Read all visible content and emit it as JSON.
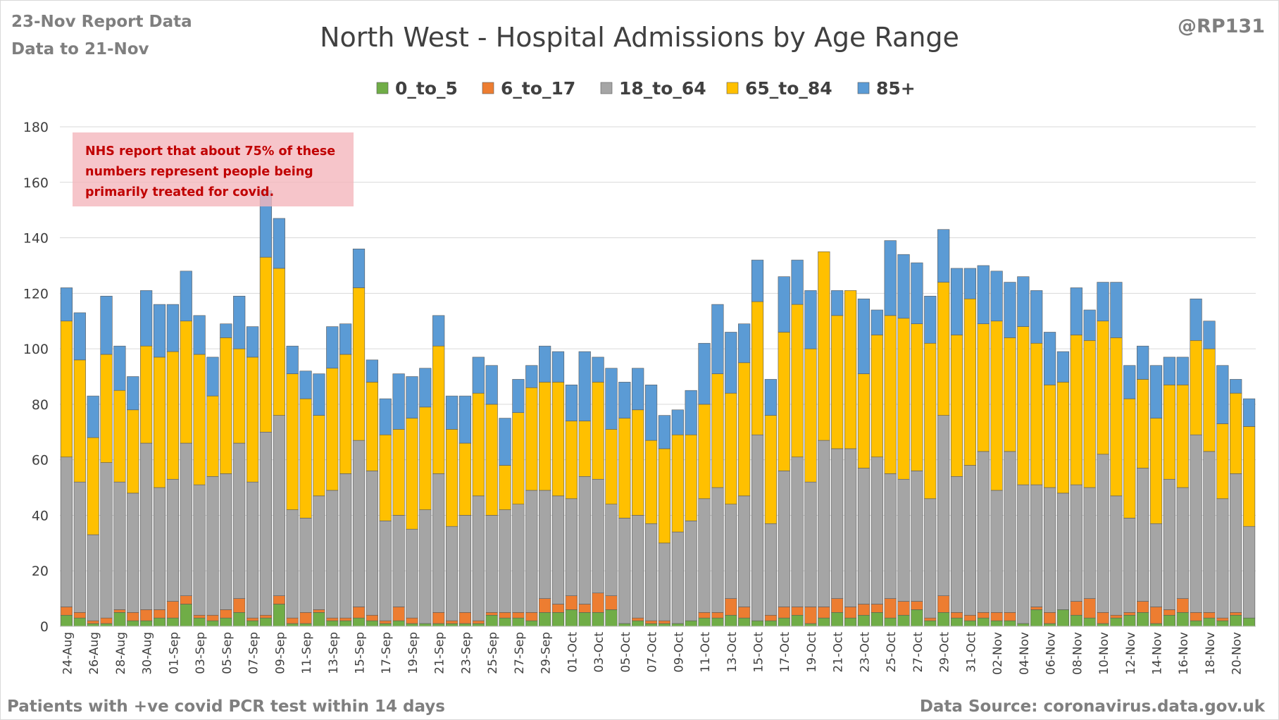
{
  "header": {
    "report_date": "23-Nov Report Data",
    "data_to": "Data to 21-Nov",
    "handle": "@RP131"
  },
  "footer": {
    "left_note": "Patients with  +ve covid PCR test within 14 days",
    "source": "Data Source: coronavirus.data.gov.uk"
  },
  "annotation": {
    "lines": [
      "NHS report that about 75% of these",
      "numbers represent people being",
      "primarily treated for covid."
    ]
  },
  "chart_data": {
    "type": "bar",
    "stacked": true,
    "title": "North West - Hospital Admissions by Age Range",
    "xlabel": "",
    "ylabel": "",
    "ylim": [
      0,
      180
    ],
    "yticks": [
      0,
      20,
      40,
      60,
      80,
      100,
      120,
      140,
      160,
      180
    ],
    "grid": true,
    "legend_position": "top",
    "categories": [
      "24-Aug",
      "25-Aug",
      "26-Aug",
      "27-Aug",
      "28-Aug",
      "29-Aug",
      "30-Aug",
      "31-Aug",
      "01-Sep",
      "02-Sep",
      "03-Sep",
      "04-Sep",
      "05-Sep",
      "06-Sep",
      "07-Sep",
      "08-Sep",
      "09-Sep",
      "10-Sep",
      "11-Sep",
      "12-Sep",
      "13-Sep",
      "14-Sep",
      "15-Sep",
      "16-Sep",
      "17-Sep",
      "18-Sep",
      "19-Sep",
      "20-Sep",
      "21-Sep",
      "22-Sep",
      "23-Sep",
      "24-Sep",
      "25-Sep",
      "26-Sep",
      "27-Sep",
      "28-Sep",
      "29-Sep",
      "30-Sep",
      "01-Oct",
      "02-Oct",
      "03-Oct",
      "04-Oct",
      "05-Oct",
      "06-Oct",
      "07-Oct",
      "08-Oct",
      "09-Oct",
      "10-Oct",
      "11-Oct",
      "12-Oct",
      "13-Oct",
      "14-Oct",
      "15-Oct",
      "16-Oct",
      "17-Oct",
      "18-Oct",
      "19-Oct",
      "20-Oct",
      "21-Oct",
      "22-Oct",
      "23-Oct",
      "24-Oct",
      "25-Oct",
      "26-Oct",
      "27-Oct",
      "28-Oct",
      "29-Oct",
      "30-Oct",
      "31-Oct",
      "01-Nov",
      "02-Nov",
      "03-Nov",
      "04-Nov",
      "05-Nov",
      "06-Nov",
      "07-Nov",
      "08-Nov",
      "09-Nov",
      "10-Nov",
      "11-Nov",
      "12-Nov",
      "13-Nov",
      "14-Nov",
      "15-Nov",
      "16-Nov",
      "17-Nov",
      "18-Nov",
      "19-Nov",
      "20-Nov",
      "21-Nov"
    ],
    "series": [
      {
        "name": "0_to_5",
        "color": "#70ad47",
        "values": [
          4,
          3,
          1,
          1,
          5,
          2,
          2,
          3,
          3,
          8,
          3,
          2,
          3,
          5,
          2,
          3,
          8,
          1,
          1,
          5,
          2,
          2,
          3,
          2,
          1,
          2,
          1,
          1,
          1,
          1,
          1,
          1,
          4,
          3,
          3,
          2,
          5,
          5,
          6,
          5,
          5,
          6,
          1,
          2,
          1,
          1,
          1,
          2,
          3,
          3,
          4,
          3,
          2,
          2,
          3,
          4,
          1,
          3,
          5,
          3,
          4,
          5,
          3,
          4,
          6,
          2,
          5,
          3,
          2,
          3,
          2,
          2,
          1,
          6,
          1,
          6,
          4,
          3,
          1,
          3,
          4,
          5,
          1,
          4,
          5,
          2,
          3,
          2,
          4,
          3
        ]
      },
      {
        "name": "6_to_17",
        "color": "#ed7d31",
        "values": [
          3,
          2,
          1,
          2,
          1,
          3,
          4,
          3,
          6,
          3,
          1,
          2,
          3,
          5,
          1,
          1,
          3,
          2,
          4,
          1,
          1,
          1,
          4,
          2,
          1,
          5,
          2,
          0,
          4,
          1,
          4,
          1,
          1,
          2,
          2,
          3,
          5,
          3,
          5,
          3,
          7,
          5,
          0,
          1,
          1,
          1,
          0,
          0,
          2,
          2,
          6,
          4,
          0,
          2,
          4,
          3,
          6,
          4,
          5,
          4,
          4,
          3,
          7,
          5,
          3,
          1,
          6,
          2,
          2,
          2,
          3,
          3,
          0,
          1,
          4,
          0,
          5,
          7,
          4,
          1,
          1,
          4,
          6,
          2,
          5,
          3,
          2,
          1,
          1,
          0
        ]
      },
      {
        "name": "18_to_64",
        "color": "#a5a5a5",
        "values": [
          54,
          47,
          31,
          56,
          46,
          43,
          60,
          44,
          44,
          55,
          47,
          50,
          49,
          56,
          49,
          66,
          65,
          39,
          34,
          41,
          46,
          52,
          60,
          52,
          36,
          33,
          32,
          41,
          50,
          34,
          35,
          45,
          35,
          37,
          39,
          44,
          39,
          39,
          35,
          46,
          41,
          33,
          38,
          37,
          35,
          28,
          33,
          36,
          41,
          45,
          34,
          40,
          67,
          33,
          49,
          54,
          45,
          60,
          54,
          57,
          49,
          53,
          45,
          44,
          47,
          43,
          65,
          49,
          54,
          58,
          44,
          58,
          50,
          44,
          45,
          42,
          42,
          40,
          57,
          43,
          34,
          48,
          30,
          47,
          40,
          64,
          58,
          43,
          50,
          33
        ]
      },
      {
        "name": "65_to_84",
        "color": "#ffc000",
        "values": [
          49,
          44,
          35,
          39,
          33,
          30,
          35,
          47,
          46,
          44,
          47,
          29,
          49,
          34,
          45,
          63,
          53,
          49,
          43,
          29,
          44,
          43,
          55,
          32,
          31,
          31,
          40,
          37,
          46,
          35,
          26,
          37,
          40,
          16,
          33,
          37,
          39,
          41,
          28,
          20,
          35,
          27,
          36,
          38,
          30,
          34,
          35,
          31,
          34,
          41,
          40,
          48,
          48,
          39,
          50,
          55,
          48,
          68,
          48,
          57,
          34,
          44,
          57,
          58,
          53,
          56,
          48,
          51,
          60,
          46,
          61,
          41,
          57,
          51,
          37,
          40,
          54,
          53,
          48,
          57,
          43,
          32,
          38,
          34,
          37,
          34,
          37,
          27,
          29,
          36
        ]
      },
      {
        "name": "85+",
        "color": "#5b9bd5",
        "values": [
          12,
          17,
          15,
          21,
          16,
          12,
          20,
          19,
          17,
          18,
          14,
          14,
          5,
          19,
          11,
          24,
          18,
          10,
          10,
          15,
          15,
          11,
          14,
          8,
          13,
          20,
          15,
          14,
          11,
          12,
          17,
          13,
          14,
          17,
          12,
          8,
          13,
          11,
          13,
          25,
          9,
          22,
          13,
          15,
          20,
          12,
          9,
          16,
          22,
          25,
          22,
          14,
          15,
          13,
          20,
          16,
          21,
          0,
          9,
          0,
          27,
          9,
          27,
          23,
          22,
          17,
          19,
          24,
          11,
          21,
          18,
          20,
          18,
          19,
          19,
          11,
          17,
          11,
          14,
          20,
          12,
          12,
          19,
          10,
          10,
          15,
          10,
          21,
          5,
          10
        ]
      }
    ]
  }
}
